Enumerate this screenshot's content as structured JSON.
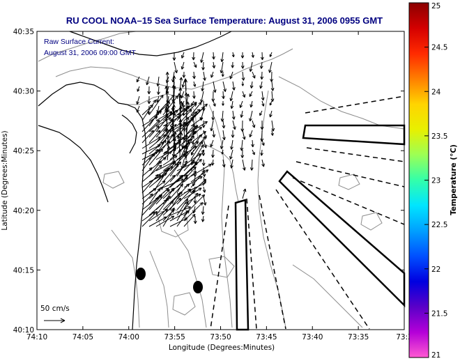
{
  "title": "RU COOL  NOAA–15  Sea Surface Temperature:  August 31, 2006 0955 GMT",
  "legend": {
    "line1": "Raw Surface Current:",
    "line2": "August 31, 2006 09:00 GMT",
    "scale_label": "50 cm/s"
  },
  "axes": {
    "xlabel": "Longitude (Degrees:Minutes)",
    "ylabel": "Latitude (Degrees:Minutes)",
    "xticks": [
      "74:10",
      "74:05",
      "74:00",
      "73:55",
      "73:50",
      "73:45",
      "73:40",
      "73:35",
      "73:3"
    ],
    "yticks": [
      "40:35",
      "40:30",
      "40:25",
      "40:20",
      "40:15",
      "40:10"
    ]
  },
  "colorbar": {
    "label": "Temperature (°C)",
    "ticks": [
      "25",
      "24.5",
      "24",
      "23.5",
      "23",
      "22.5",
      "22",
      "21.5",
      "21"
    ],
    "colors": [
      "#8b0000",
      "#d40000",
      "#ff2a00",
      "#ff7f00",
      "#ffd400",
      "#e8f000",
      "#9cff55",
      "#33ffaa",
      "#00e5ff",
      "#00a0ff",
      "#0050ff",
      "#0000e0",
      "#5a00c8",
      "#b400d8",
      "#ff5ad2"
    ]
  },
  "map": {
    "colors": {
      "frame": "#000000",
      "coast": "#000000",
      "bathymetry": "#8c8c8c",
      "arrows": "#000000"
    }
  }
}
